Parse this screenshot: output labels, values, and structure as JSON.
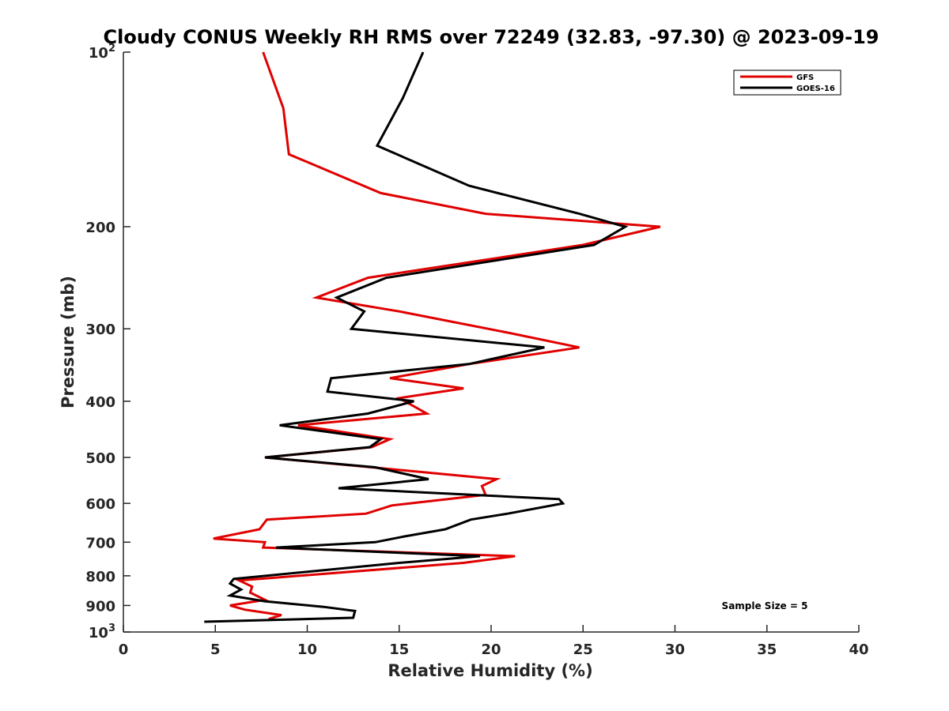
{
  "chart_data": {
    "type": "line",
    "title": "Cloudy CONUS Weekly RH RMS over 72249 (32.83, -97.30) @ 2023-09-19",
    "xlabel": "Relative Humidity (%)",
    "ylabel": "Pressure (mb)",
    "xlim": [
      0,
      40
    ],
    "ylim": [
      100,
      1000
    ],
    "y_scale": "log",
    "y_reversed": true,
    "x_ticks": [
      0,
      5,
      10,
      15,
      20,
      25,
      30,
      35,
      40
    ],
    "y_ticks": [
      {
        "value": 100,
        "label": "10",
        "sup": "2"
      },
      {
        "value": 200,
        "label": "200",
        "sup": ""
      },
      {
        "value": 300,
        "label": "300",
        "sup": ""
      },
      {
        "value": 400,
        "label": "400",
        "sup": ""
      },
      {
        "value": 500,
        "label": "500",
        "sup": ""
      },
      {
        "value": 600,
        "label": "600",
        "sup": ""
      },
      {
        "value": 700,
        "label": "700",
        "sup": ""
      },
      {
        "value": 800,
        "label": "800",
        "sup": ""
      },
      {
        "value": 900,
        "label": "900",
        "sup": ""
      },
      {
        "value": 1000,
        "label": "10",
        "sup": "3"
      }
    ],
    "grid": false,
    "legend_position": "top-right",
    "annotation": "Sample Size = 5",
    "series": [
      {
        "name": "GFS",
        "color": "#e00000",
        "points": [
          [
            7.6,
            100
          ],
          [
            8.7,
            125
          ],
          [
            9.0,
            150
          ],
          [
            14.0,
            175
          ],
          [
            19.7,
            190
          ],
          [
            29.2,
            200
          ],
          [
            25.0,
            215
          ],
          [
            13.3,
            245
          ],
          [
            10.5,
            265
          ],
          [
            15.0,
            280
          ],
          [
            21.0,
            305
          ],
          [
            24.8,
            323
          ],
          [
            18.8,
            345
          ],
          [
            14.5,
            365
          ],
          [
            18.5,
            380
          ],
          [
            15.0,
            395
          ],
          [
            16.5,
            420
          ],
          [
            9.5,
            440
          ],
          [
            14.5,
            465
          ],
          [
            13.5,
            480
          ],
          [
            7.7,
            500
          ],
          [
            13.5,
            520
          ],
          [
            20.3,
            545
          ],
          [
            19.5,
            560
          ],
          [
            19.7,
            580
          ],
          [
            14.6,
            605
          ],
          [
            13.2,
            625
          ],
          [
            7.8,
            640
          ],
          [
            7.4,
            665
          ],
          [
            4.9,
            690
          ],
          [
            7.7,
            700
          ],
          [
            7.6,
            715
          ],
          [
            21.3,
            740
          ],
          [
            18.5,
            760
          ],
          [
            6.3,
            815
          ],
          [
            7.0,
            835
          ],
          [
            6.9,
            855
          ],
          [
            7.7,
            880
          ],
          [
            5.8,
            900
          ],
          [
            6.6,
            915
          ],
          [
            8.6,
            935
          ],
          [
            7.9,
            950
          ]
        ]
      },
      {
        "name": "GOES-16",
        "color": "#000000",
        "points": [
          [
            16.3,
            100
          ],
          [
            15.2,
            120
          ],
          [
            13.8,
            145
          ],
          [
            18.8,
            170
          ],
          [
            24.8,
            190
          ],
          [
            27.3,
            200
          ],
          [
            25.6,
            215
          ],
          [
            14.3,
            245
          ],
          [
            11.6,
            265
          ],
          [
            13.1,
            280
          ],
          [
            12.4,
            300
          ],
          [
            22.9,
            323
          ],
          [
            18.8,
            345
          ],
          [
            11.3,
            365
          ],
          [
            11.1,
            385
          ],
          [
            15.8,
            400
          ],
          [
            13.3,
            420
          ],
          [
            8.5,
            440
          ],
          [
            14.0,
            465
          ],
          [
            13.4,
            480
          ],
          [
            7.7,
            500
          ],
          [
            13.7,
            520
          ],
          [
            16.6,
            545
          ],
          [
            11.7,
            565
          ],
          [
            23.7,
            590
          ],
          [
            23.9,
            600
          ],
          [
            20.9,
            625
          ],
          [
            18.9,
            640
          ],
          [
            17.5,
            665
          ],
          [
            15.2,
            685
          ],
          [
            13.7,
            700
          ],
          [
            8.3,
            715
          ],
          [
            19.4,
            740
          ],
          [
            15.0,
            760
          ],
          [
            6.0,
            810
          ],
          [
            5.8,
            825
          ],
          [
            6.4,
            845
          ],
          [
            5.8,
            865
          ],
          [
            7.7,
            885
          ],
          [
            10.9,
            905
          ],
          [
            12.6,
            920
          ],
          [
            12.5,
            945
          ],
          [
            4.4,
            960
          ]
        ]
      }
    ]
  }
}
